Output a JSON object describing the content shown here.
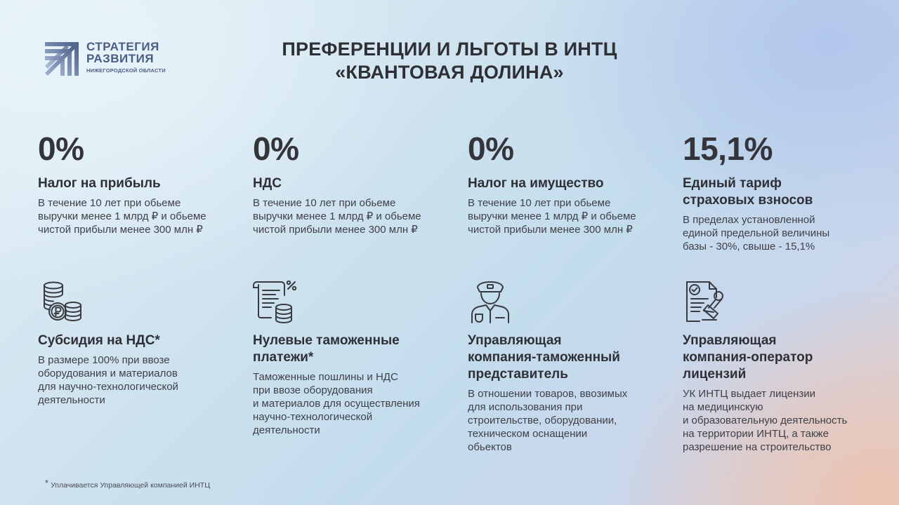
{
  "logo": {
    "line1": "СТРАТЕГИЯ",
    "line2": "РАЗВИТИЯ",
    "line3": "НИЖЕГОРОДСКОЙ ОБЛАСТИ"
  },
  "title": {
    "line1": "ПРЕФЕРЕНЦИИ И ЛЬГОТЫ В ИНТЦ",
    "line2": "«КВАНТОВАЯ ДОЛИНА»"
  },
  "rates": [
    {
      "value": "0%",
      "title": "Налог на прибыль",
      "desc": "В течение 10 лет при обьеме\nвыручки менее 1 млрд ₽ и обьеме\nчистой прибыли менее 300 млн ₽"
    },
    {
      "value": "0%",
      "title": "НДС",
      "desc": "В течение 10 лет при обьеме\nвыручки менее 1 млрд ₽ и обьеме\nчистой прибыли менее 300 млн ₽"
    },
    {
      "value": "0%",
      "title": "Налог на имущество",
      "desc": "В течение 10 лет при обьеме\nвыручки менее 1 млрд ₽ и обьеме\nчистой прибыли менее 300 млн ₽"
    },
    {
      "value": "15,1%",
      "title": "Единый тариф\nстраховых взносов",
      "desc": "В пределах установленной\nединой предельной величины\nбазы - 30%, свыше - 15,1%"
    }
  ],
  "benefits": [
    {
      "icon": "coins-ruble-icon",
      "title": "Субсидия на НДС*",
      "desc": "В размере 100% при ввозе\nоборудования и материалов\nдля научно-технологической\nдеятельности"
    },
    {
      "icon": "document-percent-icon",
      "title": "Нулевые таможенные\nплатежи*",
      "desc": "Таможенные пошлины и НДС\nпри ввозе оборудования\nи материалов для осуществления\nнаучно-технологической\nдеятельности"
    },
    {
      "icon": "customs-officer-icon",
      "title": "Управляющая\nкомпания-таможенный\nпредставитель",
      "desc": "В отношении товаров, ввозимых\nдля использования при\nстроительстве, оборудовании,\nтехническом оснащении\nобьектов"
    },
    {
      "icon": "license-stamp-icon",
      "title": "Управляющая\nкомпания-оператор\nлицензий",
      "desc": "УК ИНТЦ выдает лицензии\nна медицинскую\nи образовательную деятельность\nна территории ИНТЦ, а также\nразрешение на строительство"
    }
  ],
  "footnote": {
    "star": "*",
    "text": "Уплачивается Управляющей компанией ИНТЦ"
  },
  "colors": {
    "logo": "#4a5d86",
    "text": "#2e2e34",
    "icon": "#3a3b42"
  }
}
